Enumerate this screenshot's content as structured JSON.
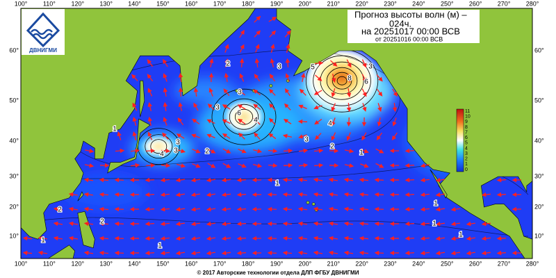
{
  "header": {
    "title_line1": "Прогноз высоты волн (м) –",
    "title_line2": "024ч.",
    "forecast": "на 20251017 00:00 ВСВ",
    "issued": "от 20251016 00:00 ВСВ"
  },
  "logo": {
    "text": "ДВНИГМИ"
  },
  "map": {
    "lon_labels": [
      "100°",
      "110°",
      "120°",
      "130°",
      "140°",
      "150°",
      "160°",
      "170°",
      "180°",
      "190°",
      "200°",
      "210°",
      "220°",
      "230°",
      "240°",
      "250°",
      "260°",
      "270°",
      "280°"
    ],
    "lat_labels": [
      "60°",
      "50°",
      "40°",
      "30°",
      "20°",
      "10°"
    ],
    "contour_labels": [
      "2",
      "3",
      "3",
      "3",
      "6",
      "4",
      "3",
      "5",
      "8",
      "6",
      "4",
      "3",
      "2",
      "1",
      "4",
      "3",
      "3",
      "2",
      "1",
      "1",
      "2",
      "2",
      "1",
      "1",
      "1",
      "1",
      "1"
    ]
  },
  "colorbar": {
    "labels": [
      "11",
      "10",
      "9",
      "8",
      "7",
      "6",
      "5",
      "4",
      "3",
      "2",
      "1",
      "0"
    ]
  },
  "footer": {
    "copyright": "© 2017 Авторские технологии отдела ДЛП ФГБУ ДВНИГМИ"
  }
}
